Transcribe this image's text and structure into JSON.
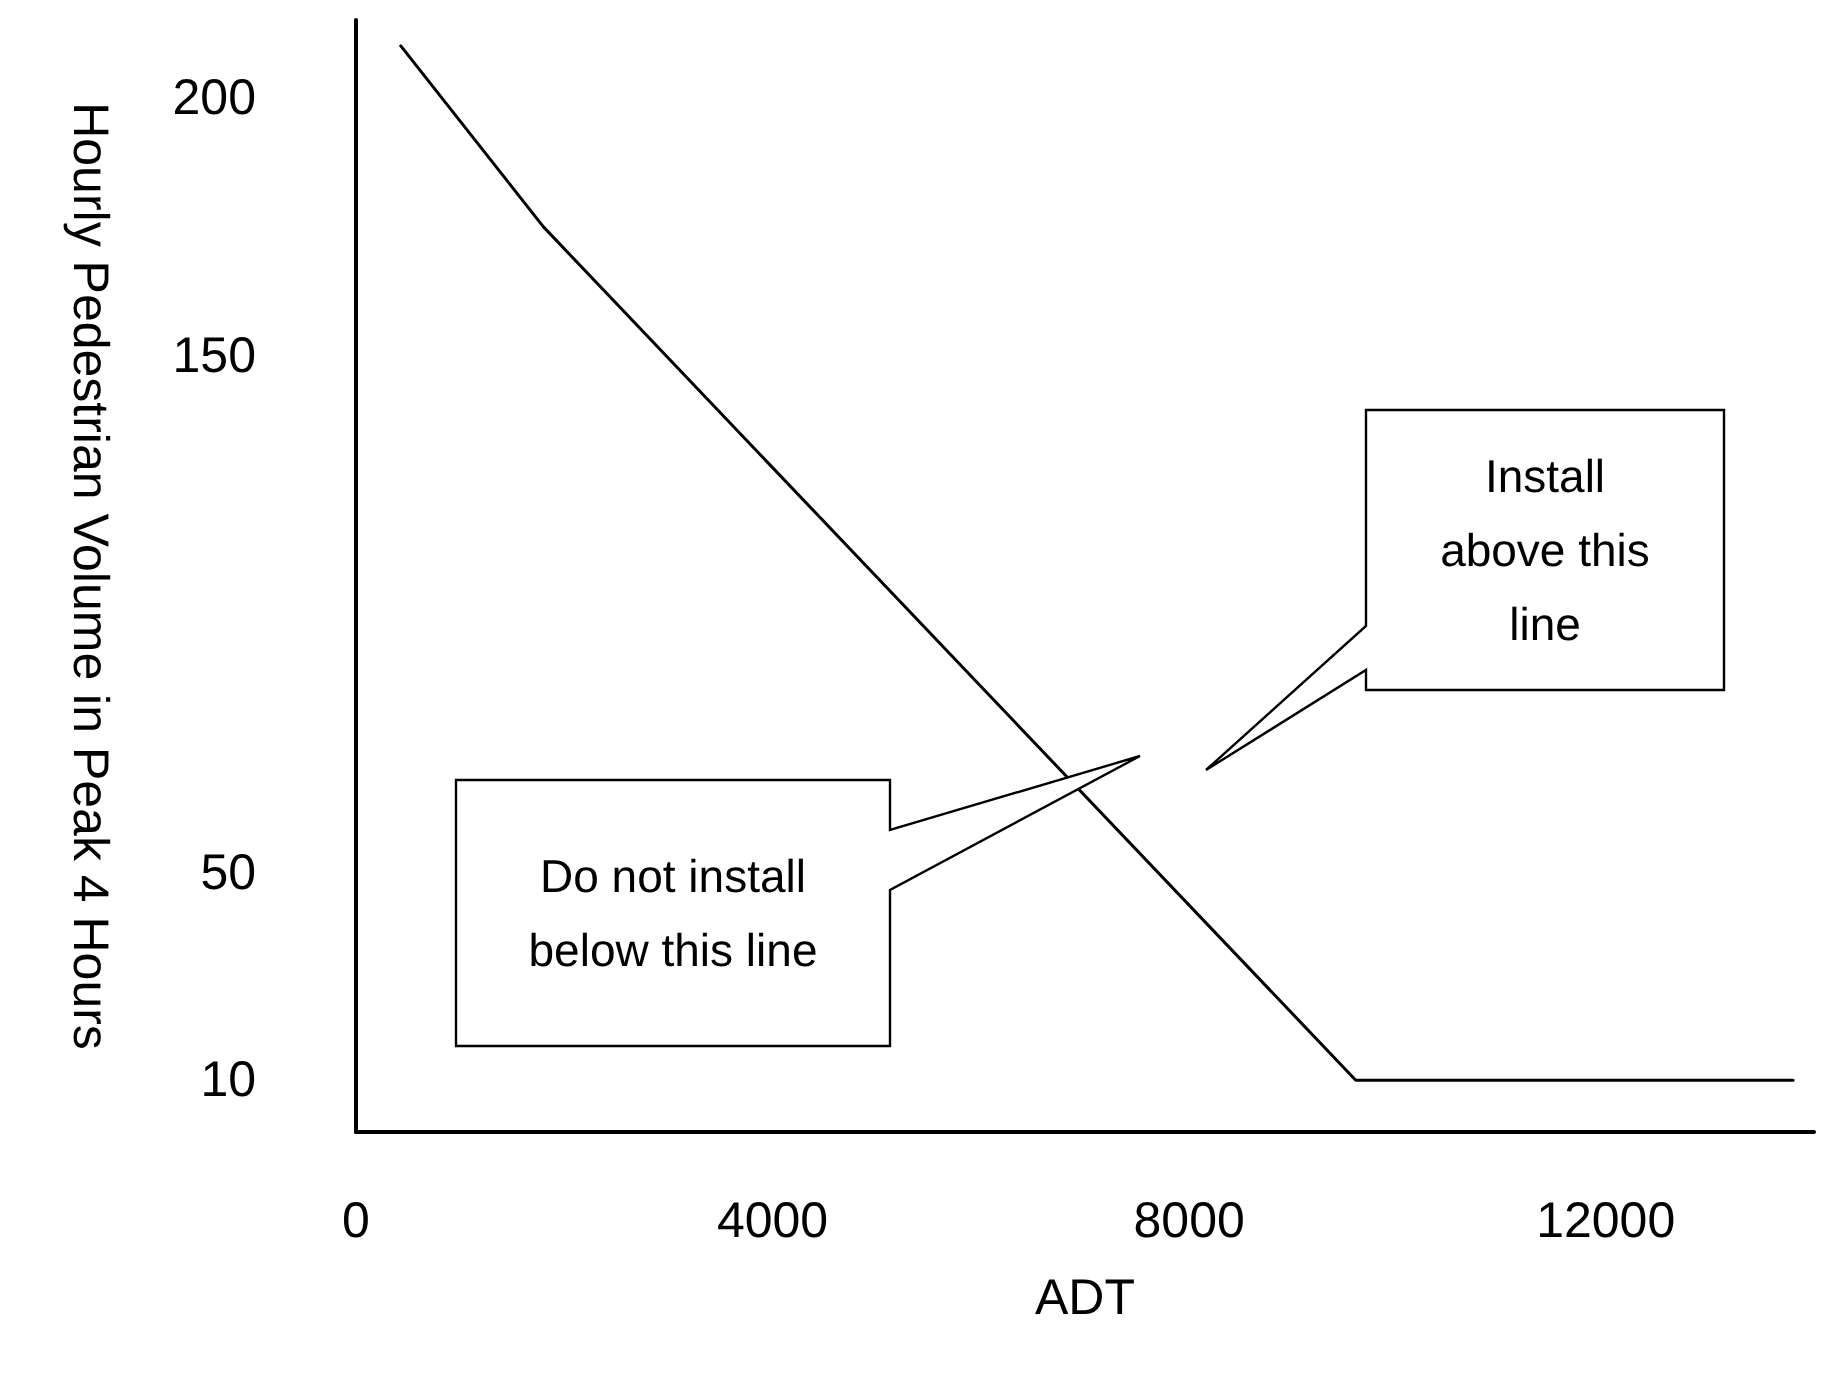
{
  "chart_data": {
    "type": "line",
    "xlabel": "ADT",
    "ylabel": "Hourly Pedestrian Volume in Peak 4 Hours",
    "x": [
      430,
      1800,
      9600,
      13800
    ],
    "values": [
      210,
      175,
      10,
      10
    ],
    "color": "#000000",
    "xlim": [
      0,
      14000
    ],
    "xticks": [
      0,
      4000,
      8000,
      12000
    ],
    "ylim": [
      0,
      215
    ],
    "yticks": [
      10,
      50,
      150,
      200
    ],
    "grid": false,
    "marker": "none",
    "line_style": "solid",
    "annotations": [
      "Do not install below this line",
      "Install above this line"
    ]
  }
}
